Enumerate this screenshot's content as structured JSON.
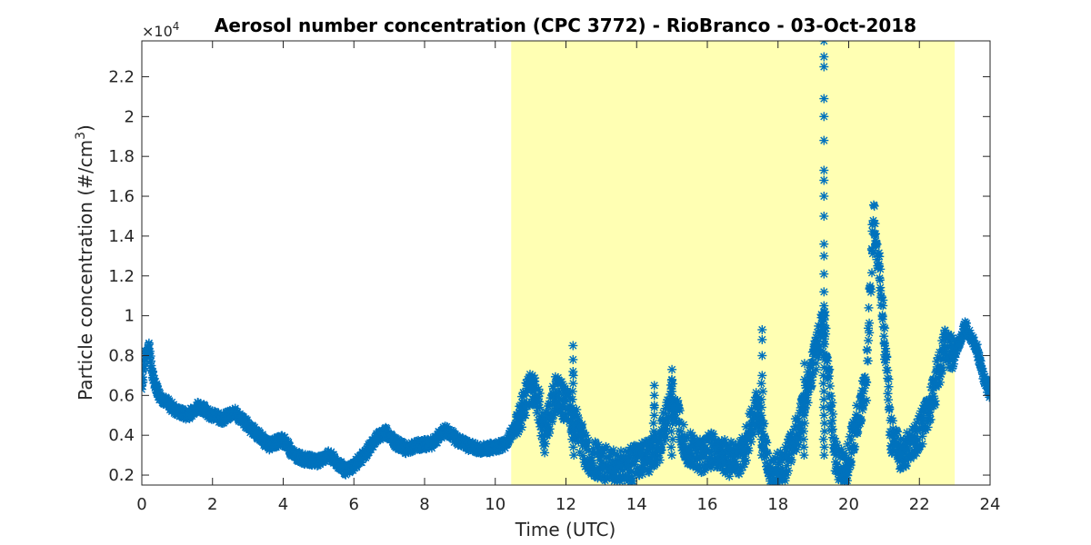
{
  "chart_data": {
    "type": "scatter",
    "title": "Aerosol number concentration (CPC 3772) - RioBranco - 03-Oct-2018",
    "xlabel": "Time (UTC)",
    "ylabel_main": "Particle concentration (#/cm",
    "ylabel_sup": "3",
    "ylabel_close": ")",
    "y_multiplier": "×10",
    "y_multiplier_exp": "4",
    "xlim": [
      0,
      24
    ],
    "ylim": [
      0.15,
      2.38
    ],
    "x_ticks": [
      0,
      2,
      4,
      6,
      8,
      10,
      12,
      14,
      16,
      18,
      20,
      22,
      24
    ],
    "y_ticks": [
      0.2,
      0.4,
      0.6,
      0.8,
      1,
      1.2,
      1.4,
      1.6,
      1.8,
      2,
      2.2
    ],
    "grid": false,
    "marker": "*",
    "marker_color": "#0072BD",
    "highlight_color": "#FFFFB3",
    "highlight_x_range": [
      10.45,
      23.0
    ],
    "series": [
      {
        "x": [
          0.0,
          0.1,
          0.2,
          0.3,
          0.5,
          0.8,
          1.0,
          1.3,
          1.6,
          2.0,
          2.3,
          2.6,
          3.0,
          3.3,
          3.6,
          4.0,
          4.3,
          4.6,
          5.0,
          5.3,
          5.6,
          5.8,
          6.0,
          6.3,
          6.6,
          6.9,
          7.2,
          7.5,
          7.8,
          8.2,
          8.6,
          8.9,
          9.2,
          9.6,
          10.0,
          10.3,
          10.6,
          10.9,
          11.1,
          11.4,
          11.7,
          12.0,
          12.3,
          12.6,
          13.0,
          13.4,
          13.8,
          14.2,
          14.6,
          15.0,
          15.4,
          15.8,
          16.2,
          16.6,
          17.0,
          17.4,
          17.8,
          18.2,
          18.6,
          19.0,
          19.3,
          19.6,
          19.9,
          20.2,
          20.5,
          20.7,
          20.9,
          21.2,
          21.5,
          21.8,
          22.1,
          22.4,
          22.7,
          23.0,
          23.3,
          23.6,
          23.8,
          24.0
        ],
        "y": [
          0.65,
          0.8,
          0.85,
          0.7,
          0.6,
          0.55,
          0.52,
          0.5,
          0.55,
          0.5,
          0.48,
          0.52,
          0.45,
          0.4,
          0.35,
          0.38,
          0.3,
          0.28,
          0.27,
          0.3,
          0.25,
          0.22,
          0.25,
          0.3,
          0.38,
          0.42,
          0.36,
          0.33,
          0.35,
          0.36,
          0.43,
          0.38,
          0.35,
          0.33,
          0.34,
          0.36,
          0.45,
          0.6,
          0.65,
          0.4,
          0.62,
          0.55,
          0.45,
          0.3,
          0.26,
          0.24,
          0.25,
          0.28,
          0.32,
          0.6,
          0.35,
          0.3,
          0.33,
          0.28,
          0.3,
          0.55,
          0.2,
          0.25,
          0.45,
          0.75,
          1.0,
          0.3,
          0.22,
          0.45,
          0.65,
          1.5,
          1.2,
          0.4,
          0.3,
          0.35,
          0.45,
          0.6,
          0.85,
          0.8,
          0.95,
          0.85,
          0.7,
          0.6
        ]
      }
    ],
    "spikes": [
      {
        "x": 19.3,
        "y": [
          1.05,
          1.12,
          1.21,
          1.3,
          1.36,
          1.5,
          1.6,
          1.68,
          1.73,
          1.88,
          2.0,
          2.09,
          2.25,
          2.3,
          2.38
        ]
      },
      {
        "x": 12.2,
        "y": [
          0.72,
          0.78,
          0.85
        ]
      },
      {
        "x": 17.55,
        "y": [
          0.7,
          0.8,
          0.88,
          0.93
        ]
      },
      {
        "x": 15.0,
        "y": [
          0.62,
          0.68,
          0.73
        ]
      },
      {
        "x": 14.5,
        "y": [
          0.55,
          0.6,
          0.65
        ]
      },
      {
        "x": 18.75,
        "y": [
          0.6,
          0.68,
          0.76
        ]
      }
    ]
  }
}
